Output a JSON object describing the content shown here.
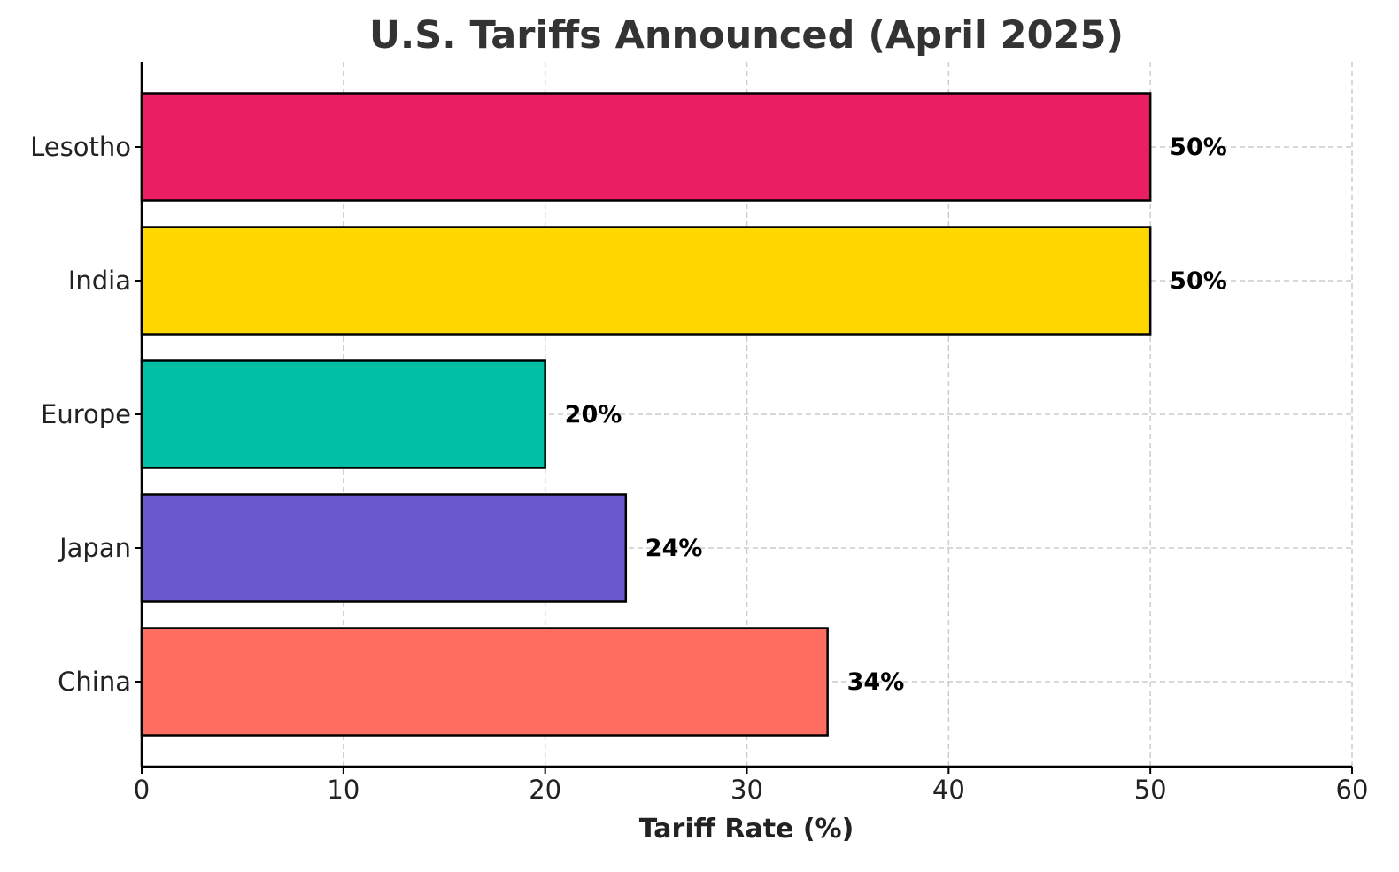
{
  "chart_data": {
    "type": "bar",
    "orientation": "horizontal",
    "title": "U.S. Tariffs Announced (April 2025)",
    "xlabel": "Tariff Rate (%)",
    "ylabel": "",
    "xlim": [
      0,
      60
    ],
    "xticks": [
      "0",
      "10",
      "20",
      "30",
      "40",
      "50",
      "60"
    ],
    "categories": [
      "China",
      "Japan",
      "Europe",
      "India",
      "Lesotho"
    ],
    "values": [
      34,
      24,
      20,
      50,
      50
    ],
    "value_labels": [
      "34%",
      "24%",
      "20%",
      "50%",
      "50%"
    ],
    "colors": [
      "#FF6F61",
      "#6A5ACD",
      "#00BFA6",
      "#FFD700",
      "#E91E63"
    ],
    "grid": true,
    "legend": "none"
  }
}
